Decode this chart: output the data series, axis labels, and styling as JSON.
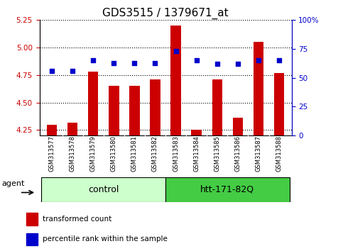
{
  "title": "GDS3515 / 1379671_at",
  "samples": [
    "GSM313577",
    "GSM313578",
    "GSM313579",
    "GSM313580",
    "GSM313581",
    "GSM313582",
    "GSM313583",
    "GSM313584",
    "GSM313585",
    "GSM313586",
    "GSM313587",
    "GSM313588"
  ],
  "transformed_count": [
    4.3,
    4.32,
    4.78,
    4.65,
    4.65,
    4.71,
    5.2,
    4.25,
    4.71,
    4.36,
    5.05,
    4.77
  ],
  "percentile_rank": [
    56,
    56,
    65,
    63,
    63,
    63,
    73,
    65,
    62,
    62,
    65,
    65
  ],
  "left_ylim": [
    4.2,
    5.25
  ],
  "right_ylim": [
    0,
    100
  ],
  "left_yticks": [
    4.25,
    4.5,
    4.75,
    5.0,
    5.25
  ],
  "right_yticks": [
    0,
    25,
    50,
    75,
    100
  ],
  "right_yticklabels": [
    "0",
    "25",
    "50",
    "75",
    "100%"
  ],
  "bar_color": "#cc0000",
  "dot_color": "#0000cc",
  "bar_width": 0.5,
  "groups": [
    {
      "label": "control",
      "start": 0,
      "end": 6,
      "color": "#ccffcc"
    },
    {
      "label": "htt-171-82Q",
      "start": 6,
      "end": 12,
      "color": "#44cc44"
    }
  ],
  "agent_label": "agent",
  "legend_bar_label": "transformed count",
  "legend_dot_label": "percentile rank within the sample",
  "title_fontsize": 11,
  "tick_fontsize": 7.5,
  "label_fontsize": 9,
  "tick_area_bg": "#cccccc",
  "plot_bg_color": "#ffffff"
}
